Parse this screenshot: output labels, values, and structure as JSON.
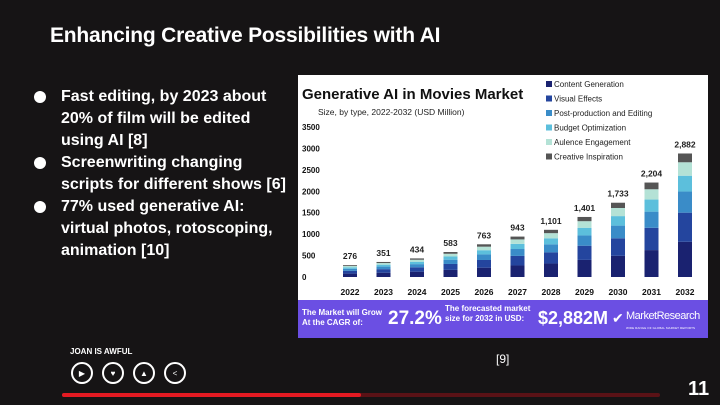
{
  "slide": {
    "title": "Enhancing Creative Possibilities with AI",
    "bullets": [
      "Fast editing, by 2023 about 20% of film will be edited using AI [8]",
      "Screenwriting changing scripts for different shows [6]",
      "77% used generative AI: virtual photos, rotoscoping, animation [10]"
    ],
    "citation": "[9]",
    "page_number": "11"
  },
  "player": {
    "show_title": "JOAN IS AWFUL",
    "controls": [
      {
        "icon": "play-icon",
        "glyph": "▶"
      },
      {
        "icon": "heart-icon",
        "glyph": "♥"
      },
      {
        "icon": "user-icon",
        "glyph": "▲"
      },
      {
        "icon": "share-icon",
        "glyph": "<"
      }
    ],
    "progress_percent": 50,
    "progress_color": "#e31a22"
  },
  "chart_data": {
    "type": "bar",
    "stacked": true,
    "title": "Generative AI in Movies Market",
    "subtitle": "Size, by type, 2022-2032 (USD Million)",
    "categories": [
      "2022",
      "2023",
      "2024",
      "2025",
      "2026",
      "2027",
      "2028",
      "2029",
      "2030",
      "2031",
      "2032"
    ],
    "totals": [
      "276",
      "351",
      "434",
      "583",
      "763",
      "943",
      "1,101",
      "1,401",
      "1,733",
      "2,204",
      "2,882"
    ],
    "series": [
      {
        "name": "Content Generation",
        "color": "#1a2270",
        "values": [
          79,
          100,
          124,
          166,
          217,
          269,
          314,
          399,
          494,
          628,
          821
        ]
      },
      {
        "name": "Visual Effects",
        "color": "#24459e",
        "values": [
          65,
          83,
          102,
          138,
          180,
          223,
          260,
          331,
          409,
          520,
          680
        ]
      },
      {
        "name": "Post-production and Editing",
        "color": "#3a8cc8",
        "values": [
          47,
          60,
          74,
          100,
          130,
          161,
          188,
          240,
          296,
          377,
          493
        ]
      },
      {
        "name": "Budget Optimization",
        "color": "#5cbfdc",
        "values": [
          35,
          45,
          56,
          75,
          98,
          121,
          141,
          179,
          222,
          282,
          369
        ]
      },
      {
        "name": "Aulence Engagement",
        "color": "#b4e2d6",
        "values": [
          30,
          38,
          47,
          63,
          83,
          103,
          120,
          153,
          189,
          240,
          314
        ]
      },
      {
        "name": "Creative Inspiration",
        "color": "#555555",
        "values": [
          20,
          25,
          31,
          41,
          55,
          66,
          78,
          99,
          123,
          157,
          205
        ]
      }
    ],
    "yticks": [
      "0",
      "500",
      "1000",
      "1500",
      "2000",
      "2500",
      "3000",
      "3500"
    ],
    "ylim": [
      0,
      3500
    ],
    "legend_position": "top-right",
    "grid": false
  },
  "banner": {
    "cagr_label": "The Market will Grow At the CAGR of:",
    "cagr_value": "27.2%",
    "forecast_label": "The forecasted market size for 2032 in USD:",
    "forecast_value": "$2,882M",
    "brand": "MarketResearch",
    "brand_tagline": "WIDE RANGE OF GLOBAL MARKET REPORTS",
    "color": "#6b4fe3"
  }
}
